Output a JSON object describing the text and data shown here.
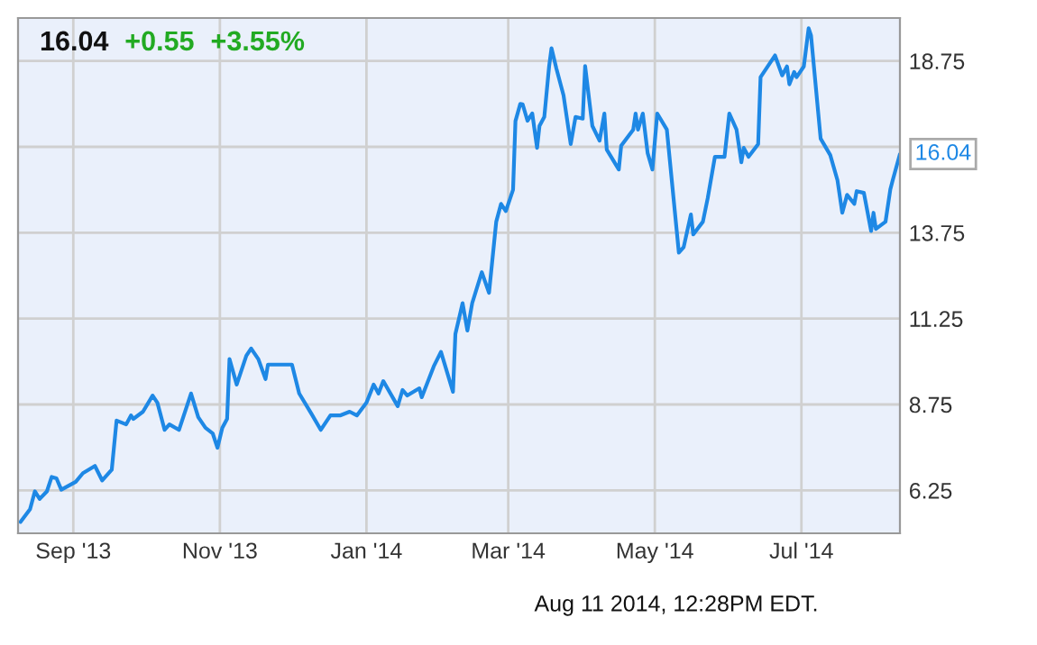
{
  "chart_data": {
    "type": "line",
    "annotations": [
      "16.04",
      "+0.55",
      "+3.55%",
      {
        "text": "16.04",
        "x": "2014-08-11",
        "y": 16.04
      },
      "Aug 11 2014, 12:28PM EDT."
    ],
    "x": [
      "2013-08-10",
      "2013-08-14",
      "2013-08-16",
      "2013-08-18",
      "2013-08-21",
      "2013-08-23",
      "2013-08-25",
      "2013-08-27",
      "2013-09-02",
      "2013-09-05",
      "2013-09-10",
      "2013-09-13",
      "2013-09-17",
      "2013-09-19",
      "2013-09-23",
      "2013-09-25",
      "2013-09-26",
      "2013-09-30",
      "2013-10-04",
      "2013-10-06",
      "2013-10-09",
      "2013-10-11",
      "2013-10-15",
      "2013-10-20",
      "2013-10-23",
      "2013-10-26",
      "2013-10-29",
      "2013-10-31",
      "2013-11-02",
      "2013-11-04",
      "2013-11-05",
      "2013-11-08",
      "2013-11-12",
      "2013-11-14",
      "2013-11-17",
      "2013-11-20",
      "2013-11-21",
      "2013-11-26",
      "2013-12-01",
      "2013-12-04",
      "2013-12-09",
      "2013-12-13",
      "2013-12-17",
      "2013-12-21",
      "2013-12-25",
      "2013-12-28",
      "2014-01-01",
      "2014-01-04",
      "2014-01-06",
      "2014-01-08",
      "2014-01-14",
      "2014-01-16",
      "2014-01-18",
      "2014-01-23",
      "2014-01-24",
      "2014-01-29",
      "2014-02-01",
      "2014-02-06",
      "2014-02-07",
      "2014-02-10",
      "2014-02-12",
      "2014-02-14",
      "2014-02-18",
      "2014-02-21",
      "2014-02-24",
      "2014-02-26",
      "2014-02-28",
      "2014-03-03",
      "2014-03-04",
      "2014-03-06",
      "2014-03-07",
      "2014-03-09",
      "2014-03-11",
      "2014-03-13",
      "2014-03-14",
      "2014-03-16",
      "2014-03-18",
      "2014-03-19",
      "2014-03-21",
      "2014-03-24",
      "2014-03-27",
      "2014-03-29",
      "2014-04-01",
      "2014-04-02",
      "2014-04-05",
      "2014-04-08",
      "2014-04-10",
      "2014-04-11",
      "2014-04-16",
      "2014-04-17",
      "2014-04-22",
      "2014-04-23",
      "2014-04-24",
      "2014-04-26",
      "2014-04-28",
      "2014-04-30",
      "2014-05-02",
      "2014-05-06",
      "2014-05-11",
      "2014-05-13",
      "2014-05-16",
      "2014-05-17",
      "2014-05-21",
      "2014-05-23",
      "2014-05-26",
      "2014-05-30",
      "2014-06-01",
      "2014-06-04",
      "2014-06-06",
      "2014-06-07",
      "2014-06-09",
      "2014-06-13",
      "2014-06-14",
      "2014-06-20",
      "2014-06-23",
      "2014-06-25",
      "2014-06-26",
      "2014-06-28",
      "2014-06-29",
      "2014-07-02",
      "2014-07-04",
      "2014-07-05",
      "2014-07-09",
      "2014-07-13",
      "2014-07-16",
      "2014-07-18",
      "2014-07-20",
      "2014-07-23",
      "2014-07-24",
      "2014-07-27",
      "2014-07-30",
      "2014-07-31",
      "2014-08-01",
      "2014-08-05",
      "2014-08-07",
      "2014-08-08",
      "2014-08-11"
    ],
    "series": [
      {
        "color": "#1e88e5",
        "values": [
          5.33,
          5.7,
          6.22,
          6.0,
          6.22,
          6.64,
          6.6,
          6.27,
          6.5,
          6.75,
          6.96,
          6.54,
          6.85,
          8.28,
          8.17,
          8.43,
          8.33,
          8.54,
          9.01,
          8.8,
          8.01,
          8.17,
          8.01,
          9.07,
          8.38,
          8.07,
          7.91,
          7.49,
          8.07,
          8.33,
          10.07,
          9.33,
          10.17,
          10.38,
          10.07,
          9.49,
          9.91,
          9.91,
          9.91,
          9.07,
          8.49,
          8.01,
          8.43,
          8.43,
          8.54,
          8.43,
          8.8,
          9.33,
          9.07,
          9.43,
          8.7,
          9.17,
          9.01,
          9.22,
          8.96,
          9.86,
          10.28,
          9.12,
          10.8,
          11.7,
          10.9,
          11.7,
          12.6,
          12.0,
          14.07,
          14.59,
          14.38,
          15.0,
          17.0,
          17.5,
          17.49,
          17.01,
          17.22,
          16.22,
          16.86,
          17.12,
          18.59,
          19.12,
          18.54,
          17.75,
          16.33,
          17.12,
          17.07,
          18.6,
          16.86,
          16.43,
          17.22,
          16.17,
          15.59,
          16.28,
          16.75,
          17.22,
          16.75,
          17.22,
          16.07,
          15.59,
          17.22,
          16.75,
          13.17,
          13.33,
          14.28,
          13.7,
          14.07,
          14.75,
          15.96,
          15.96,
          17.22,
          16.75,
          15.8,
          16.22,
          15.96,
          16.33,
          18.28,
          18.91,
          18.33,
          18.59,
          18.07,
          18.43,
          18.28,
          18.59,
          19.7,
          19.49,
          16.49,
          16.01,
          15.28,
          14.33,
          14.85,
          14.59,
          14.96,
          14.91,
          13.8,
          14.33,
          13.86,
          14.07,
          15.01,
          15.28,
          16.04
        ]
      }
    ],
    "xlim": [
      "2013-08-09",
      "2014-08-11"
    ],
    "xticks": [
      {
        "value": "2013-09-01",
        "label": "Sep '13"
      },
      {
        "value": "2013-11-01",
        "label": "Nov '13"
      },
      {
        "value": "2014-01-01",
        "label": "Jan '14"
      },
      {
        "value": "2014-03-01",
        "label": "Mar '14"
      },
      {
        "value": "2014-05-01",
        "label": "May '14"
      },
      {
        "value": "2014-07-01",
        "label": "Jul '14"
      }
    ],
    "ylim": [
      5,
      20
    ],
    "yticks": [
      6.25,
      8.75,
      11.25,
      13.75,
      {
        "value": 16.25,
        "label": null
      },
      18.75
    ],
    "grid": true,
    "marker": "none",
    "line_style": "solid"
  }
}
